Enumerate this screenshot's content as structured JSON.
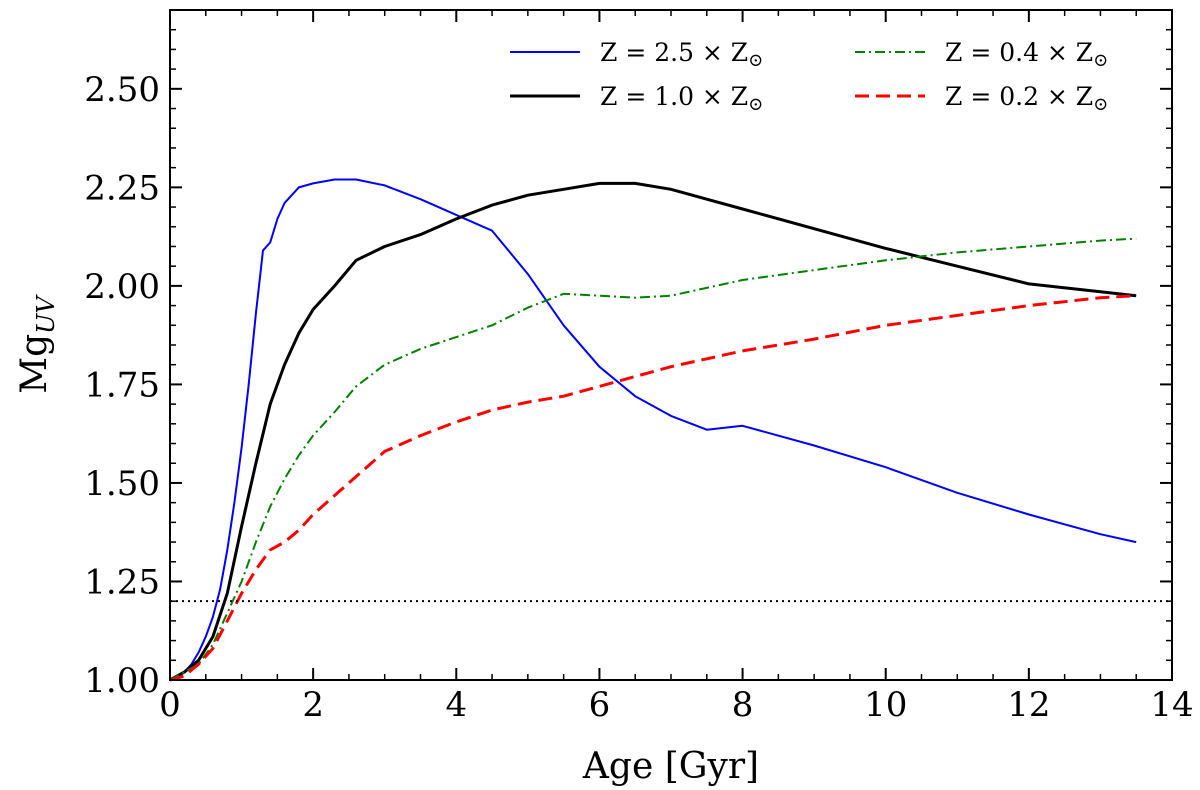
{
  "chart_data": {
    "type": "line",
    "title": "",
    "xlabel": "Age [Gyr]",
    "ylabel_main": "Mg",
    "ylabel_sub": "UV",
    "xlim": [
      0,
      14
    ],
    "ylim": [
      1.0,
      2.7
    ],
    "xticks": [
      0,
      2,
      4,
      6,
      8,
      10,
      12,
      14
    ],
    "xtick_labels": [
      "0",
      "2",
      "4",
      "6",
      "8",
      "10",
      "12",
      "14"
    ],
    "yticks": [
      1.0,
      1.25,
      1.5,
      1.75,
      2.0,
      2.25,
      2.5
    ],
    "ytick_labels": [
      "1.00",
      "1.25",
      "1.50",
      "1.75",
      "2.00",
      "2.25",
      "2.50"
    ],
    "grid": false,
    "legend_position": "top-right",
    "reference_line": {
      "y": 1.2,
      "style": "dotted",
      "color": "#000000"
    },
    "series": [
      {
        "name": "Z = 2.5 × Z⊙",
        "color": "#0000ff",
        "style": "solid",
        "width": 2,
        "x": [
          0,
          0.1,
          0.2,
          0.3,
          0.4,
          0.5,
          0.6,
          0.7,
          0.8,
          0.9,
          1.0,
          1.1,
          1.2,
          1.3,
          1.4,
          1.5,
          1.6,
          1.8,
          2.0,
          2.3,
          2.6,
          3.0,
          3.5,
          4.0,
          4.5,
          5.0,
          5.5,
          6.0,
          6.5,
          7.0,
          7.5,
          8.0,
          9.0,
          10.0,
          11.0,
          12.0,
          13.0,
          13.5
        ],
        "values": [
          1.0,
          1.01,
          1.02,
          1.04,
          1.07,
          1.11,
          1.16,
          1.23,
          1.33,
          1.45,
          1.59,
          1.75,
          1.93,
          2.09,
          2.11,
          2.17,
          2.21,
          2.25,
          2.26,
          2.27,
          2.27,
          2.255,
          2.22,
          2.18,
          2.14,
          2.03,
          1.9,
          1.795,
          1.72,
          1.67,
          1.635,
          1.645,
          1.595,
          1.54,
          1.475,
          1.42,
          1.37,
          1.35
        ]
      },
      {
        "name": "Z = 1.0 × Z⊙",
        "color": "#000000",
        "style": "solid",
        "width": 3,
        "x": [
          0,
          0.2,
          0.4,
          0.6,
          0.8,
          1.0,
          1.2,
          1.4,
          1.6,
          1.8,
          2.0,
          2.3,
          2.6,
          3.0,
          3.5,
          4.0,
          4.5,
          5.0,
          5.5,
          6.0,
          6.5,
          7.0,
          7.5,
          8.0,
          9.0,
          10.0,
          11.0,
          12.0,
          13.0,
          13.5
        ],
        "values": [
          1.0,
          1.02,
          1.05,
          1.11,
          1.22,
          1.39,
          1.55,
          1.7,
          1.8,
          1.88,
          1.94,
          2.0,
          2.065,
          2.1,
          2.13,
          2.17,
          2.205,
          2.23,
          2.245,
          2.26,
          2.26,
          2.245,
          2.22,
          2.195,
          2.145,
          2.095,
          2.05,
          2.005,
          1.985,
          1.975
        ]
      },
      {
        "name": "Z = 0.4 × Z⊙",
        "color": "#008000",
        "style": "dashdot",
        "width": 2,
        "x": [
          0,
          0.2,
          0.4,
          0.6,
          0.8,
          1.0,
          1.2,
          1.4,
          1.6,
          1.8,
          2.0,
          2.3,
          2.6,
          3.0,
          3.5,
          4.0,
          4.5,
          5.0,
          5.5,
          6.0,
          6.5,
          7.0,
          8.0,
          9.0,
          10.0,
          11.0,
          12.0,
          13.0,
          13.5
        ],
        "values": [
          1.0,
          1.02,
          1.04,
          1.09,
          1.17,
          1.25,
          1.35,
          1.44,
          1.51,
          1.57,
          1.62,
          1.68,
          1.745,
          1.8,
          1.84,
          1.87,
          1.9,
          1.945,
          1.98,
          1.975,
          1.97,
          1.975,
          2.015,
          2.04,
          2.065,
          2.085,
          2.1,
          2.115,
          2.12
        ]
      },
      {
        "name": "Z = 0.2 × Z⊙",
        "color": "#ff0000",
        "style": "dashed",
        "width": 3,
        "x": [
          0,
          0.2,
          0.4,
          0.6,
          0.8,
          1.0,
          1.2,
          1.4,
          1.6,
          1.8,
          2.0,
          2.5,
          3.0,
          3.5,
          4.0,
          4.5,
          5.0,
          5.5,
          6.0,
          6.5,
          7.0,
          7.5,
          8.0,
          9.0,
          10.0,
          11.0,
          12.0,
          13.0,
          13.5
        ],
        "values": [
          1.0,
          1.01,
          1.04,
          1.08,
          1.15,
          1.22,
          1.28,
          1.33,
          1.35,
          1.38,
          1.42,
          1.5,
          1.58,
          1.62,
          1.655,
          1.685,
          1.705,
          1.72,
          1.745,
          1.77,
          1.795,
          1.815,
          1.835,
          1.865,
          1.9,
          1.925,
          1.95,
          1.97,
          1.975
        ]
      }
    ],
    "legend": [
      {
        "series": 0,
        "label_main": "Z = 2.5 × Z",
        "label_sym": "⊙"
      },
      {
        "series": 1,
        "label_main": "Z = 1.0 × Z",
        "label_sym": "⊙"
      },
      {
        "series": 2,
        "label_main": "Z = 0.4 × Z",
        "label_sym": "⊙"
      },
      {
        "series": 3,
        "label_main": "Z = 0.2 × Z",
        "label_sym": "⊙"
      }
    ]
  }
}
